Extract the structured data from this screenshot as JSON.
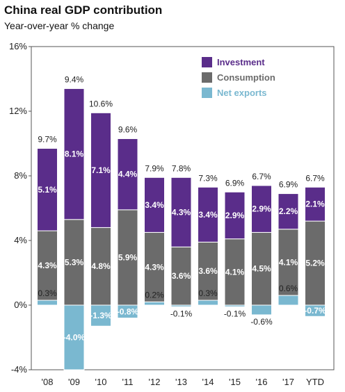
{
  "chart_data": {
    "type": "bar",
    "stacked": true,
    "title": "China real GDP contribution",
    "subtitle": "Year-over-year % change",
    "ylim": [
      -4,
      16
    ],
    "yticks": [
      "-4%",
      "0%",
      "4%",
      "8%",
      "12%",
      "16%"
    ],
    "ytick_values": [
      -4,
      0,
      4,
      8,
      12,
      16
    ],
    "grid": false,
    "legend_position": "top-right",
    "categories": [
      "'08",
      "'09",
      "'10",
      "'11",
      "'12",
      "'13",
      "'14",
      "'15",
      "'16",
      "'17",
      "YTD"
    ],
    "totals": [
      "9.7%",
      "9.4%",
      "10.6%",
      "9.6%",
      "7.9%",
      "7.8%",
      "7.3%",
      "6.9%",
      "6.7%",
      "6.9%",
      "6.7%"
    ],
    "series": [
      {
        "name": "Net exports",
        "color": "#7ab8d0",
        "values": [
          0.3,
          -4.0,
          -1.3,
          -0.8,
          0.2,
          -0.1,
          0.3,
          -0.1,
          -0.6,
          0.6,
          -0.7
        ],
        "labels": [
          "0.3%",
          "-4.0%",
          "-1.3%",
          "-0.8%",
          "0.2%",
          "-0.1%",
          "0.3%",
          "-0.1%",
          "-0.6%",
          "0.6%",
          "-0.7%"
        ]
      },
      {
        "name": "Consumption",
        "color": "#6b6b6b",
        "values": [
          4.3,
          5.3,
          4.8,
          5.9,
          4.3,
          3.6,
          3.6,
          4.1,
          4.5,
          4.1,
          5.2
        ],
        "labels": [
          "4.3%",
          "5.3%",
          "4.8%",
          "5.9%",
          "4.3%",
          "3.6%",
          "3.6%",
          "4.1%",
          "4.5%",
          "4.1%",
          "5.2%"
        ]
      },
      {
        "name": "Investment",
        "color": "#5a2d8a",
        "values": [
          5.1,
          8.1,
          7.1,
          4.4,
          3.4,
          4.3,
          3.4,
          2.9,
          2.9,
          2.2,
          2.1
        ],
        "labels": [
          "5.1%",
          "8.1%",
          "7.1%",
          "4.4%",
          "3.4%",
          "4.3%",
          "3.4%",
          "2.9%",
          "2.9%",
          "2.2%",
          "2.1%"
        ]
      }
    ],
    "legend_order": [
      "Investment",
      "Consumption",
      "Net exports"
    ]
  }
}
